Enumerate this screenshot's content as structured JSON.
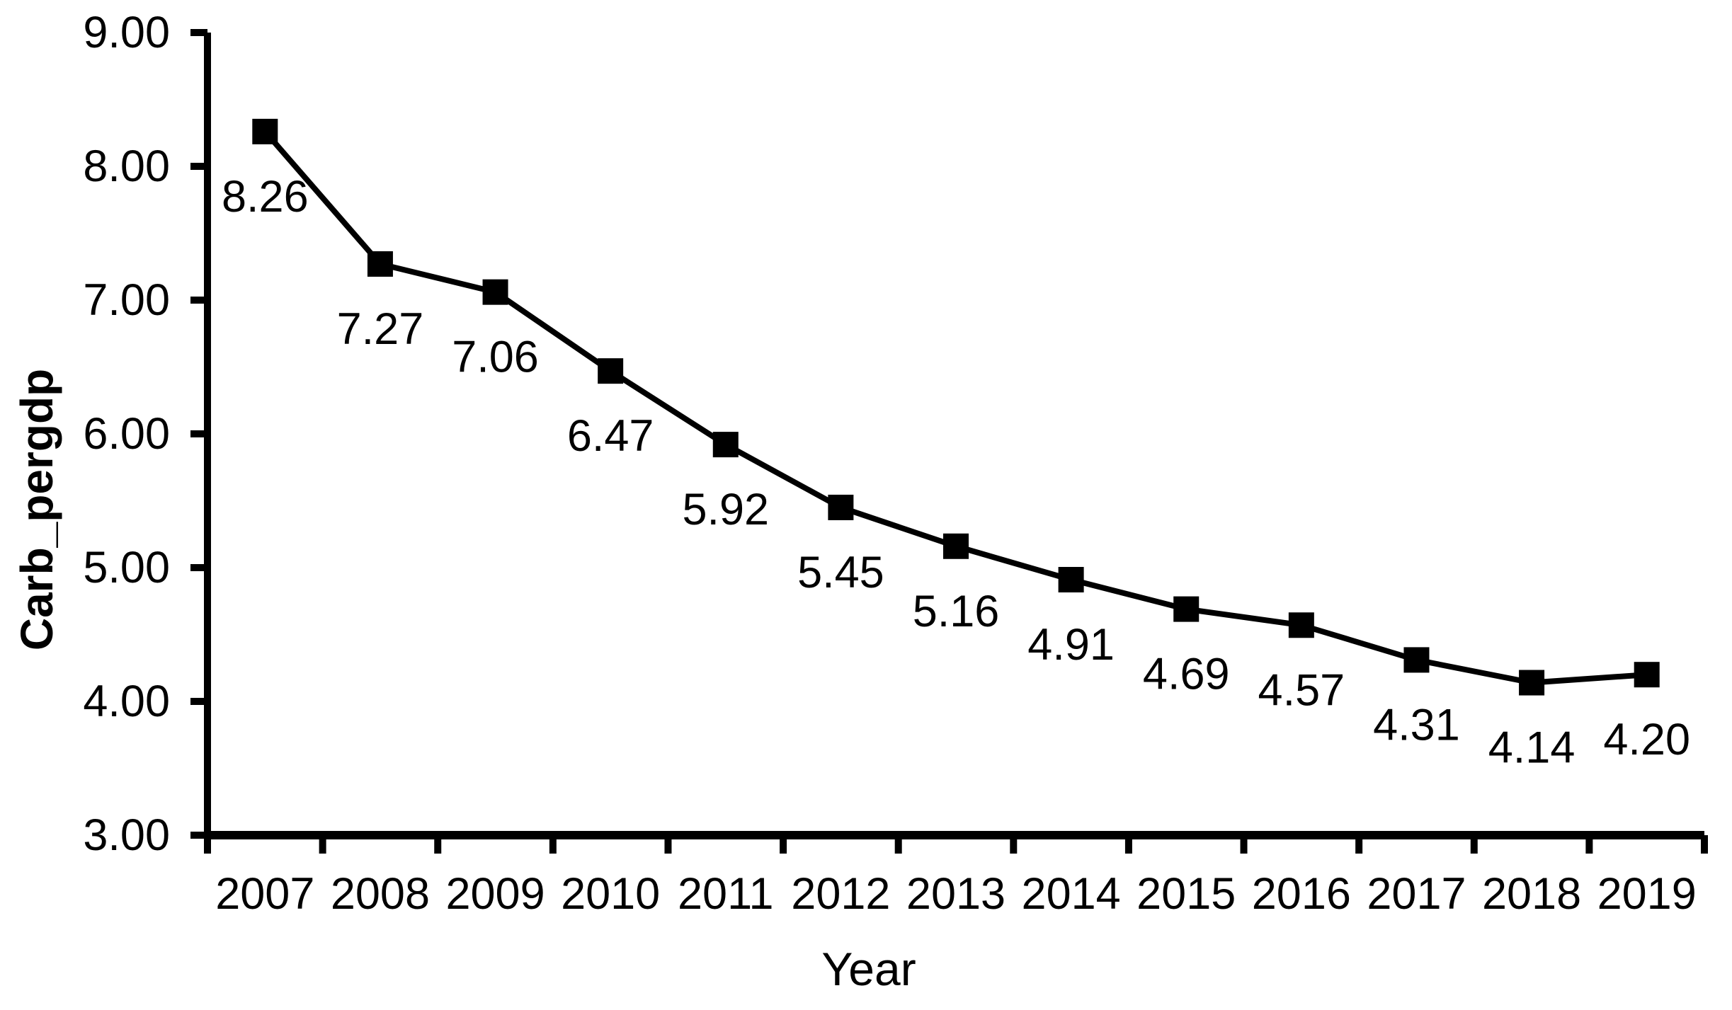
{
  "chart_data": {
    "type": "line",
    "title": "",
    "xlabel": "Year",
    "ylabel": "Carb_pergdp",
    "categories": [
      "2007",
      "2008",
      "2009",
      "2010",
      "2011",
      "2012",
      "2013",
      "2014",
      "2015",
      "2016",
      "2017",
      "2018",
      "2019"
    ],
    "series": [
      {
        "name": "Carb_pergdp",
        "values": [
          8.26,
          7.27,
          7.06,
          6.47,
          5.92,
          5.45,
          5.16,
          4.91,
          4.69,
          4.57,
          4.31,
          4.14,
          4.2
        ]
      }
    ],
    "data_labels": [
      "8.26",
      "7.27",
      "7.06",
      "6.47",
      "5.92",
      "5.45",
      "5.16",
      "4.91",
      "4.69",
      "4.57",
      "4.31",
      "4.14",
      "4.20"
    ],
    "ylim": [
      3.0,
      9.0
    ],
    "ytick_step": 1.0,
    "ytick_labels": [
      "3.00",
      "4.00",
      "5.00",
      "6.00",
      "7.00",
      "8.00",
      "9.00"
    ],
    "xtick_count": 14,
    "grid": false,
    "legend": "none",
    "marker_shape": "square",
    "line_color": "#000000",
    "marker_color": "#000000",
    "text_color": "#000000",
    "background_color": "#ffffff"
  }
}
